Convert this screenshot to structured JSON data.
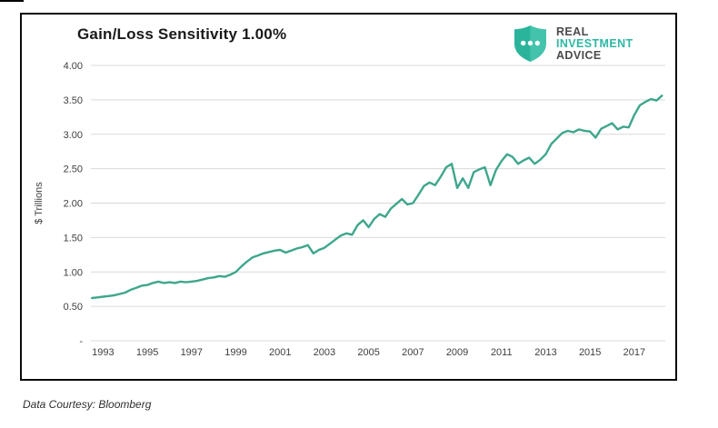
{
  "header": {
    "title": "Gain/Loss Sensitivity 1.00%"
  },
  "logo": {
    "line1": "REAL",
    "line2": "INVESTMENT",
    "line3": "ADVICE",
    "shield_color_left": "#2bb49c",
    "shield_color_right": "#43c3ac",
    "dot_color": "#ffffff",
    "text_gray": "#4b4b4b",
    "text_teal": "#2fb7a4"
  },
  "footer": {
    "note": "Data Courtesy: Bloomberg"
  },
  "chart_data": {
    "type": "line",
    "title": "Gain/Loss Sensitivity 1.00%",
    "xlabel": "",
    "ylabel": "$ Trillions",
    "ylim": [
      0,
      4
    ],
    "x_domain": [
      1992.45,
      2018.4
    ],
    "grid": true,
    "grid_color": "#d9d9d9",
    "axis_text_color": "#3f3f3f",
    "legend": "none",
    "yticks": [
      {
        "label": "4.00",
        "value": 4.0
      },
      {
        "label": "3.50",
        "value": 3.5
      },
      {
        "label": "3.00",
        "value": 3.0
      },
      {
        "label": "2.50",
        "value": 2.5
      },
      {
        "label": "2.00",
        "value": 2.0
      },
      {
        "label": "1.50",
        "value": 1.5
      },
      {
        "label": "1.00",
        "value": 1.0
      },
      {
        "label": "0.50",
        "value": 0.5
      },
      {
        "label": "-",
        "value": 0.0
      }
    ],
    "xticks": [
      1993,
      1995,
      1997,
      1999,
      2001,
      2003,
      2005,
      2007,
      2009,
      2011,
      2013,
      2015,
      2017
    ],
    "series": [
      {
        "name": "Gain/Loss Sensitivity 1.00%",
        "color": "#3ea68c",
        "x": [
          1992.5,
          1992.75,
          1993,
          1993.25,
          1993.5,
          1993.75,
          1994,
          1994.25,
          1994.5,
          1994.75,
          1995,
          1995.25,
          1995.5,
          1995.75,
          1996,
          1996.25,
          1996.5,
          1996.75,
          1997,
          1997.25,
          1997.5,
          1997.75,
          1998,
          1998.25,
          1998.5,
          1998.75,
          1999,
          1999.25,
          1999.5,
          1999.75,
          2000,
          2000.25,
          2000.5,
          2000.75,
          2001,
          2001.25,
          2001.5,
          2001.75,
          2002,
          2002.25,
          2002.5,
          2002.75,
          2003,
          2003.25,
          2003.5,
          2003.75,
          2004,
          2004.25,
          2004.5,
          2004.75,
          2005,
          2005.25,
          2005.5,
          2005.75,
          2006,
          2006.25,
          2006.5,
          2006.75,
          2007,
          2007.25,
          2007.5,
          2007.75,
          2008,
          2008.25,
          2008.5,
          2008.75,
          2009,
          2009.25,
          2009.5,
          2009.75,
          2010,
          2010.25,
          2010.5,
          2010.75,
          2011,
          2011.25,
          2011.5,
          2011.75,
          2012,
          2012.25,
          2012.5,
          2012.75,
          2013,
          2013.25,
          2013.5,
          2013.75,
          2014,
          2014.25,
          2014.5,
          2014.75,
          2015,
          2015.25,
          2015.5,
          2015.75,
          2016,
          2016.25,
          2016.5,
          2016.75,
          2017,
          2017.25,
          2017.5,
          2017.75,
          2018,
          2018.25
        ],
        "values": [
          0.62,
          0.63,
          0.64,
          0.65,
          0.66,
          0.68,
          0.7,
          0.74,
          0.77,
          0.8,
          0.81,
          0.84,
          0.86,
          0.84,
          0.85,
          0.84,
          0.86,
          0.85,
          0.86,
          0.87,
          0.89,
          0.91,
          0.92,
          0.94,
          0.93,
          0.96,
          1.0,
          1.08,
          1.15,
          1.21,
          1.24,
          1.27,
          1.29,
          1.31,
          1.32,
          1.28,
          1.31,
          1.34,
          1.36,
          1.39,
          1.27,
          1.32,
          1.35,
          1.41,
          1.47,
          1.53,
          1.56,
          1.54,
          1.68,
          1.75,
          1.65,
          1.77,
          1.84,
          1.8,
          1.92,
          1.99,
          2.06,
          1.98,
          2.0,
          2.12,
          2.25,
          2.3,
          2.26,
          2.38,
          2.52,
          2.57,
          2.22,
          2.36,
          2.22,
          2.45,
          2.49,
          2.52,
          2.26,
          2.48,
          2.61,
          2.71,
          2.67,
          2.57,
          2.62,
          2.66,
          2.57,
          2.63,
          2.71,
          2.86,
          2.94,
          3.02,
          3.05,
          3.03,
          3.07,
          3.05,
          3.04,
          2.95,
          3.08,
          3.12,
          3.16,
          3.07,
          3.11,
          3.1,
          3.28,
          3.42,
          3.47,
          3.51,
          3.49,
          3.56
        ]
      }
    ]
  }
}
